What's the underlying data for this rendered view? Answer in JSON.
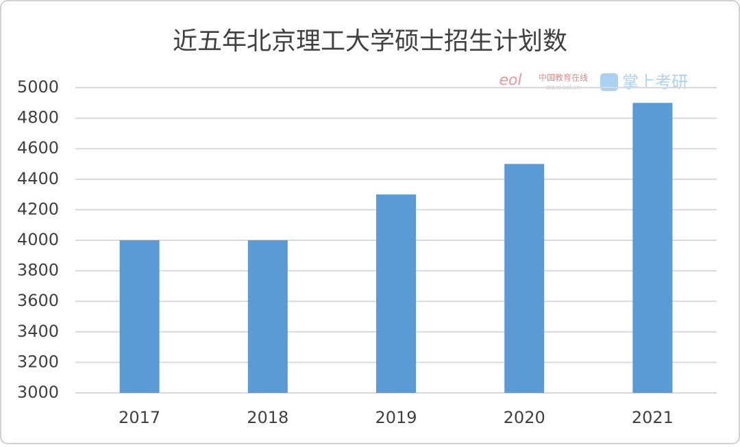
{
  "chart_data": {
    "type": "bar",
    "title": "近五年北京理工大学硕士招生计划数",
    "categories": [
      "2017",
      "2018",
      "2019",
      "2020",
      "2021"
    ],
    "values": [
      4000,
      4000,
      4300,
      4500,
      4900
    ],
    "color": "#5b9bd5",
    "ylim": [
      3000,
      5000
    ],
    "yticks": [
      3000,
      3200,
      3400,
      3600,
      3800,
      4000,
      4200,
      4400,
      4600,
      4800,
      5000
    ],
    "grid": true,
    "watermark": {
      "logo": "eol",
      "site_name": "中国教育在线",
      "site_url": "www.eol.cn",
      "brand": "掌上考研"
    }
  }
}
